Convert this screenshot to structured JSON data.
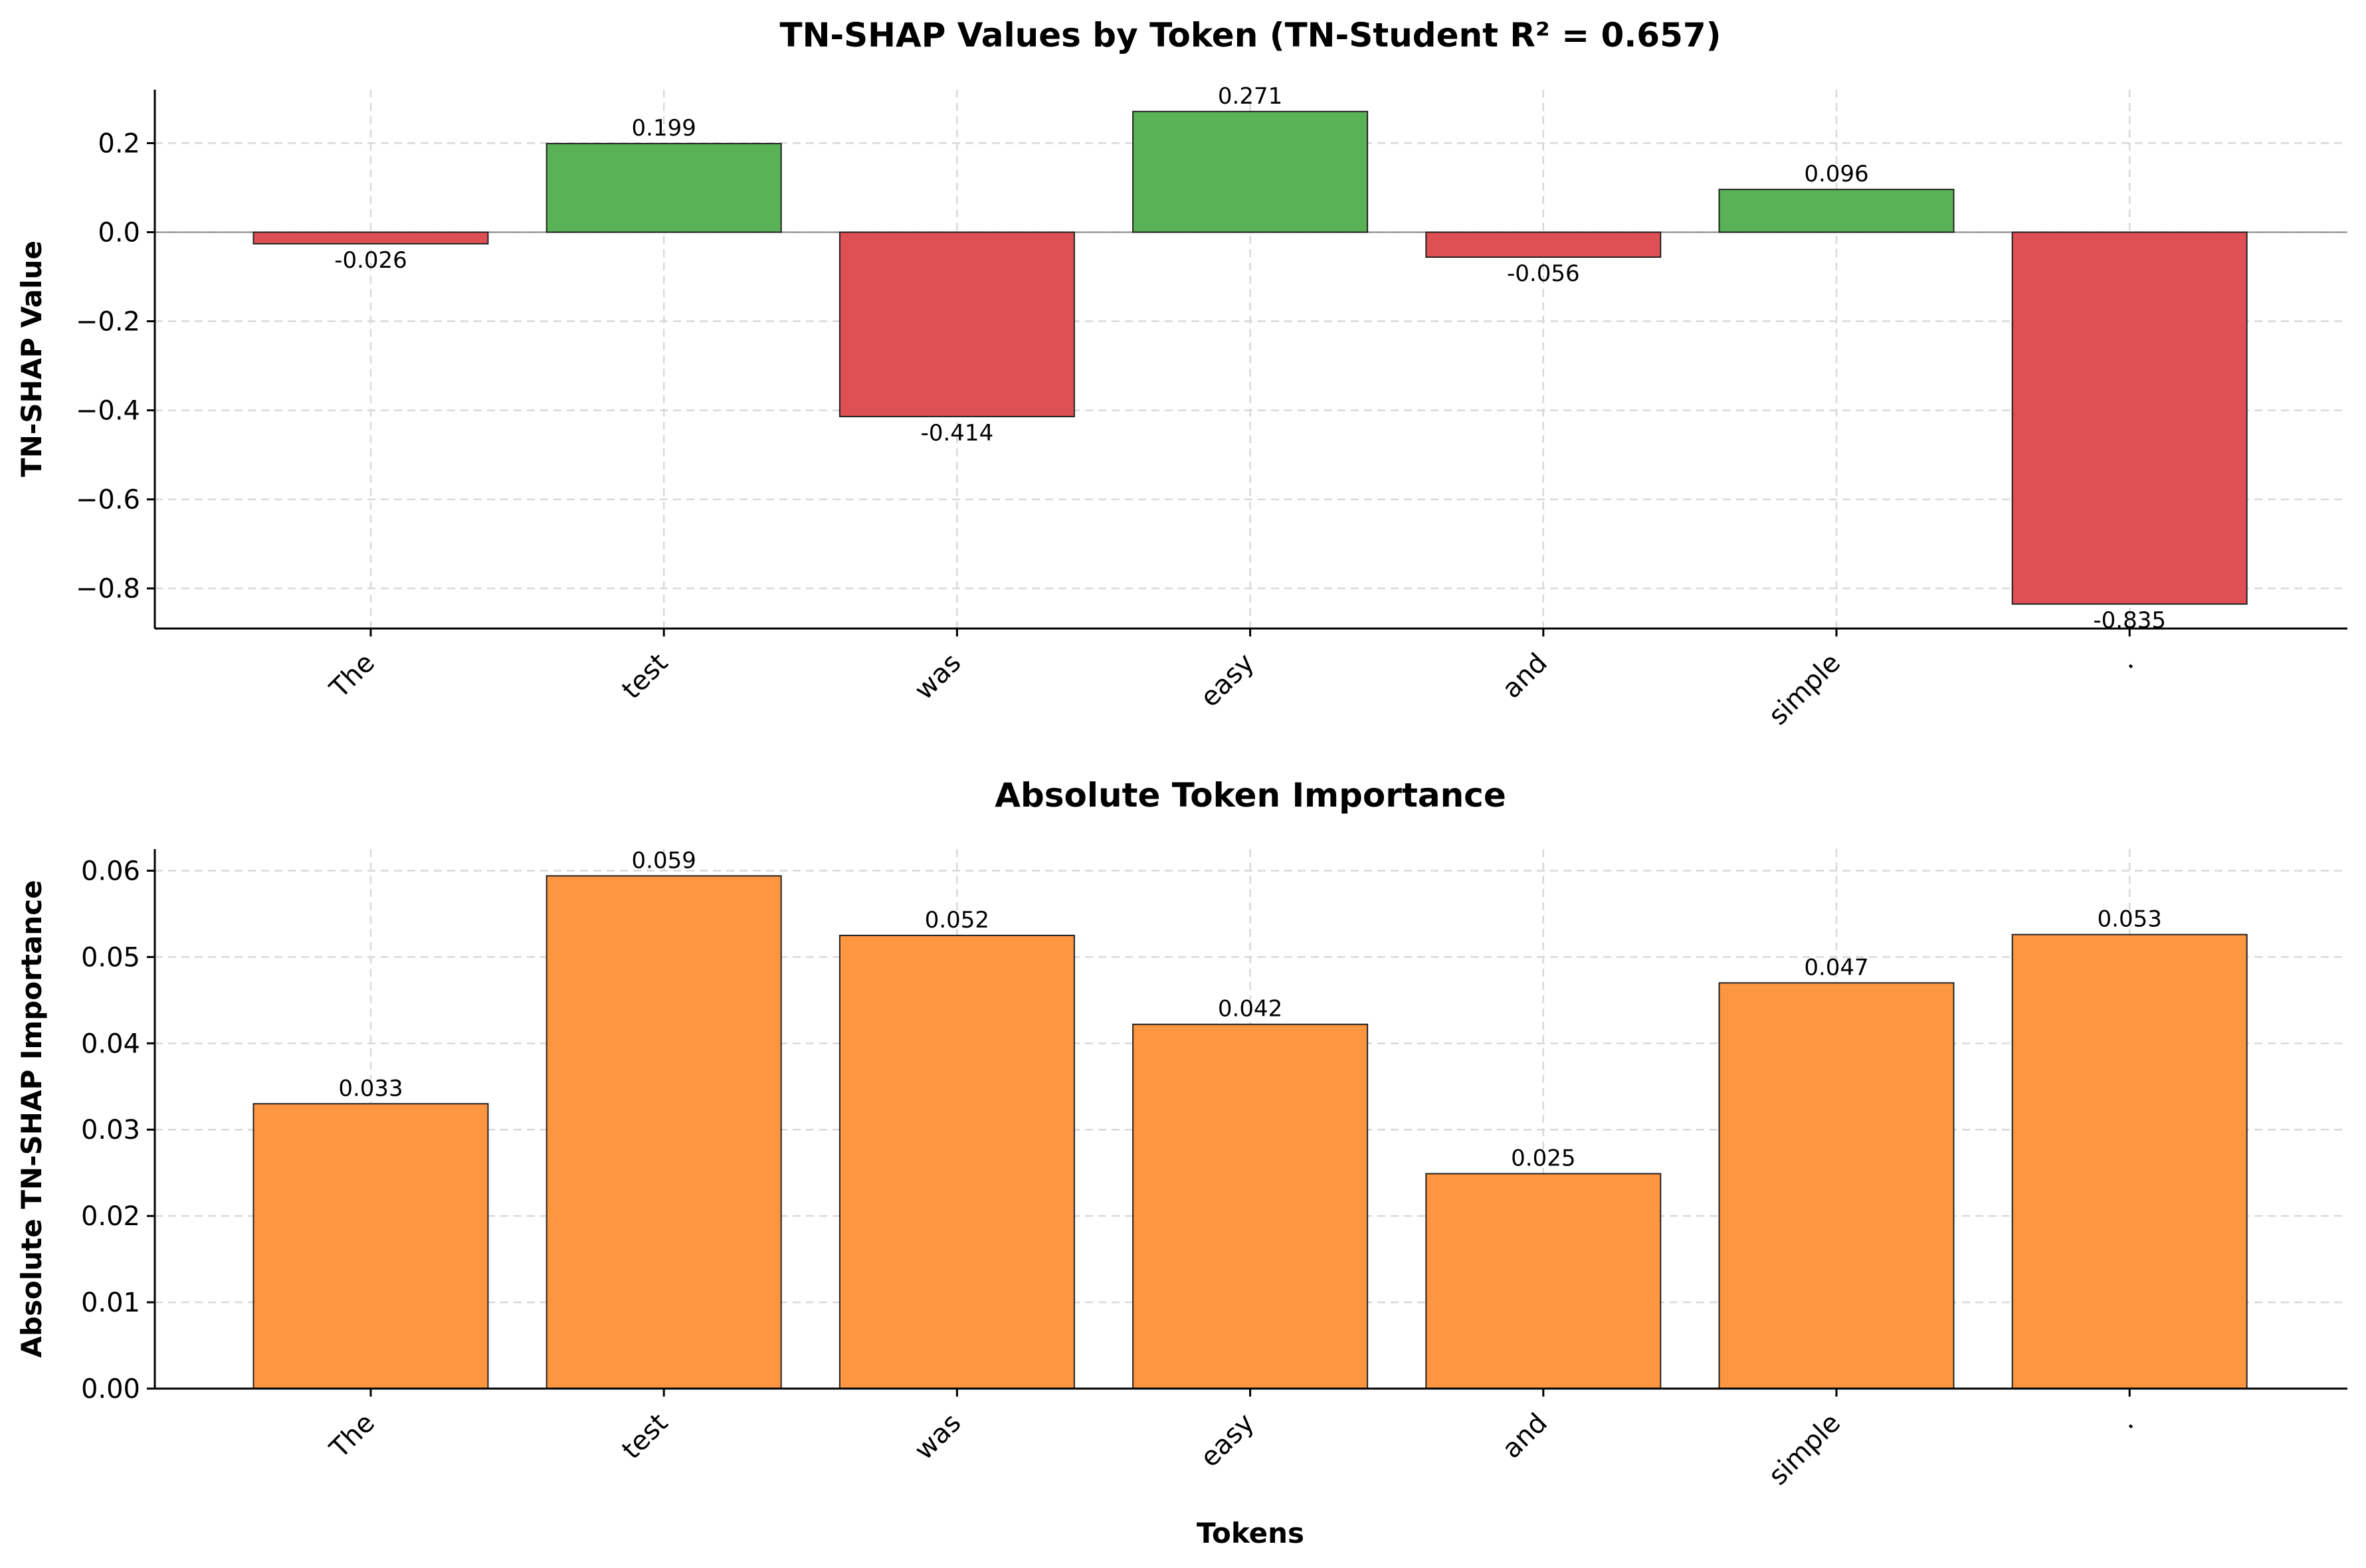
{
  "chart_data": [
    {
      "type": "bar",
      "title": "TN-SHAP Values by Token (TN-Student R² = 0.657)",
      "xlabel": "",
      "ylabel": "TN-SHAP Value",
      "categories": [
        "The",
        "test",
        "was",
        "easy",
        "and",
        "simple",
        "."
      ],
      "values": [
        -0.026,
        0.199,
        -0.414,
        0.271,
        -0.056,
        0.096,
        -0.835
      ],
      "value_labels": [
        "-0.026",
        "0.199",
        "-0.414",
        "0.271",
        "-0.056",
        "0.096",
        "-0.835"
      ],
      "ylim": [
        -0.89,
        0.32
      ],
      "yticks": [
        0.2,
        0.0,
        -0.2,
        -0.4,
        -0.6,
        -0.8
      ],
      "ytick_labels": [
        "0.2",
        "0.0",
        "−0.2",
        "−0.4",
        "−0.6",
        "−0.8"
      ],
      "colors": {
        "positive": "#59b356",
        "negative": "#de5054"
      },
      "grid": true,
      "zero_line": true
    },
    {
      "type": "bar",
      "title": "Absolute Token Importance",
      "xlabel": "Tokens",
      "ylabel": "Absolute TN-SHAP Importance",
      "categories": [
        "The",
        "test",
        "was",
        "easy",
        "and",
        "simple",
        "."
      ],
      "values": [
        0.033,
        0.0594,
        0.0525,
        0.0422,
        0.0249,
        0.047,
        0.0526
      ],
      "value_labels": [
        "0.033",
        "0.059",
        "0.052",
        "0.042",
        "0.025",
        "0.047",
        "0.053"
      ],
      "ylim": [
        0,
        0.0625
      ],
      "yticks": [
        0.0,
        0.01,
        0.02,
        0.03,
        0.04,
        0.05,
        0.06
      ],
      "ytick_labels": [
        "0.00",
        "0.01",
        "0.02",
        "0.03",
        "0.04",
        "0.05",
        "0.06"
      ],
      "colors": {
        "bar": "#fd9640"
      },
      "grid": true
    }
  ]
}
